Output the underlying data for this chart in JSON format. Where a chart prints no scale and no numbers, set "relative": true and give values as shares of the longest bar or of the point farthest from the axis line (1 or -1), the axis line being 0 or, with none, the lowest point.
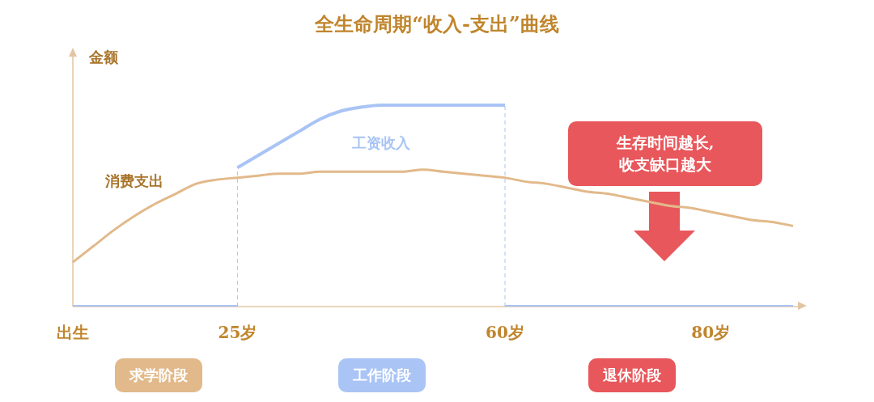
{
  "chart_data": {
    "type": "line",
    "title": "全生命周期“收入-支出”曲线",
    "ylabel": "金额",
    "relative": true,
    "legend": false,
    "grid": false,
    "marker": "none",
    "categories": [
      "出生",
      null,
      null,
      null,
      null,
      null,
      null,
      null,
      "25岁",
      null,
      null,
      null,
      null,
      null,
      null,
      null,
      null,
      null,
      null,
      null,
      null,
      "60岁",
      null,
      null,
      null,
      null,
      null,
      null,
      null,
      null,
      null,
      "80岁",
      null,
      null,
      null,
      null
    ],
    "series": [
      {
        "name": "消费支出",
        "color": "#e2b98a",
        "values": [
          0.22,
          0.3,
          0.38,
          0.45,
          0.51,
          0.56,
          0.61,
          0.63,
          0.64,
          0.65,
          0.66,
          0.66,
          0.67,
          0.67,
          0.67,
          0.67,
          0.67,
          0.68,
          0.67,
          0.66,
          0.65,
          0.64,
          0.62,
          0.61,
          0.59,
          0.57,
          0.56,
          0.54,
          0.52,
          0.5,
          0.49,
          0.47,
          0.45,
          0.43,
          0.42,
          0.4
        ]
      },
      {
        "name": "工资收入",
        "color": "#a9c4f5",
        "values": [
          null,
          null,
          null,
          null,
          null,
          null,
          null,
          null,
          0.69,
          0.75,
          0.81,
          0.87,
          0.93,
          0.97,
          0.99,
          1,
          1,
          1,
          1,
          1,
          1,
          1,
          null,
          null,
          null,
          null,
          null,
          null,
          null,
          null,
          null,
          null,
          null,
          null,
          null,
          null
        ]
      },
      {
        "color": "#a9c4f5",
        "values": [
          0,
          0,
          0,
          0,
          0,
          0,
          0,
          0,
          0,
          null,
          null,
          null,
          null,
          null,
          null,
          null,
          null,
          null,
          null,
          null,
          null,
          0,
          0,
          0,
          0,
          0,
          0,
          0,
          0,
          0,
          0,
          0,
          0,
          0,
          0,
          0
        ]
      }
    ],
    "ref_lines": [
      {
        "axis": "x",
        "value": "25岁",
        "color": "#a9c4f5",
        "line_style": "dashed"
      },
      {
        "axis": "x",
        "value": "60岁",
        "color": "#a9c4f5",
        "line_style": "dashed"
      }
    ],
    "annotations": [
      "生存时间越长,\n收支缺口越大",
      "求学阶段",
      "工作阶段",
      "退休阶段"
    ]
  }
}
